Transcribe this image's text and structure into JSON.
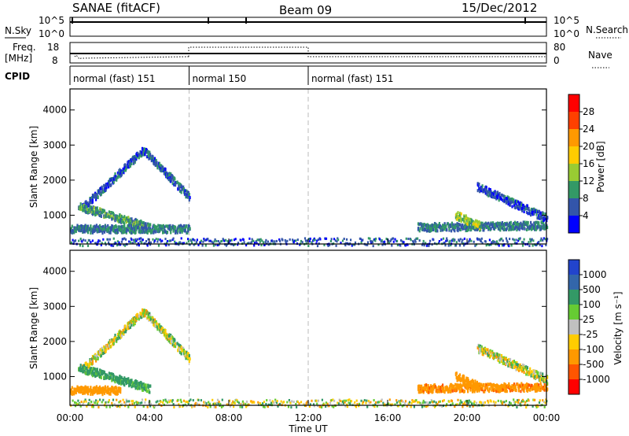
{
  "header": {
    "site": "SANAE (fitACF)",
    "beam": "Beam 09",
    "date": "15/Dec/2012"
  },
  "labels": {
    "nsky": "N.Sky",
    "nsearch": "N.Search",
    "freq_line1": "Freq.",
    "freq_line2": "[MHz]",
    "nave": "Nave",
    "cpid": "CPID",
    "x_axis": "Time UT",
    "y_axis": "Slant Range [km]",
    "power_bar": "Power [dB]",
    "velocity_bar": "Velocity [m s⁻¹]"
  },
  "ticks": {
    "nsky_left": [
      "10^5",
      "10^0"
    ],
    "nsky_right": [
      "10^5",
      "10^0"
    ],
    "freq_left": [
      "18",
      "8"
    ],
    "nave_right": [
      "80",
      "0"
    ],
    "time": [
      "00:00",
      "04:00",
      "08:00",
      "12:00",
      "16:00",
      "20:00",
      "00:00"
    ],
    "range": [
      "1000",
      "2000",
      "3000",
      "4000"
    ]
  },
  "cpid_segments": [
    {
      "label": "normal (fast) 151",
      "start_h": 0,
      "end_h": 6
    },
    {
      "label": "normal 150",
      "start_h": 6,
      "end_h": 12
    },
    {
      "label": "normal (fast) 151",
      "start_h": 12,
      "end_h": 24
    }
  ],
  "colorbars": {
    "power": {
      "labels": [
        "28",
        "24",
        "20",
        "16",
        "12",
        "8",
        "4"
      ],
      "colors": [
        "#ff0000",
        "#ff4000",
        "#ff9900",
        "#ffcc00",
        "#99cc33",
        "#339966",
        "#3355aa",
        "#0000ff"
      ]
    },
    "velocity": {
      "labels": [
        "1000",
        "500",
        "100",
        "25",
        "-25",
        "-100",
        "-500",
        "-1000"
      ],
      "colors": [
        "#2244cc",
        "#3366aa",
        "#339966",
        "#66cc33",
        "#c0c0c0",
        "#ffcc00",
        "#ff9900",
        "#ff5500",
        "#ff0000"
      ]
    }
  },
  "chart_data": [
    {
      "type": "heatmap",
      "title": "Power",
      "xlabel": "",
      "ylabel": "Slant Range [km]",
      "xlim_hours": [
        0,
        24
      ],
      "ylim_km": [
        180,
        4600
      ],
      "zlabel": "Power [dB]",
      "zlim": [
        0,
        32
      ],
      "features": [
        {
          "desc": "arch",
          "t_start": 0.6,
          "t_peak": 3.7,
          "t_end": 6.0,
          "range_start": 1200,
          "range_peak": 2850,
          "range_end": 1500,
          "value": 6
        },
        {
          "desc": "descending band",
          "t_start": 0.4,
          "t_end": 4.0,
          "range_start": 1250,
          "range_end": 650,
          "value": 10
        },
        {
          "desc": "low band",
          "t_start": 0.0,
          "t_end": 6.0,
          "range_start": 600,
          "range_end": 600,
          "value": 8
        },
        {
          "desc": "late band",
          "t_start": 17.5,
          "t_end": 24.0,
          "range_start": 650,
          "range_end": 700,
          "value": 8
        },
        {
          "desc": "evening arch",
          "t_start": 20.5,
          "t_end": 24.0,
          "range_start": 1800,
          "range_end": 900,
          "value": 5
        },
        {
          "desc": "afternoon cluster",
          "t_start": 19.4,
          "t_end": 20.6,
          "range_start": 1000,
          "range_end": 700,
          "value": 14
        },
        {
          "desc": "ground scatter",
          "t_start": 0.0,
          "t_end": 24.0,
          "range_start": 220,
          "range_end": 220,
          "value": 6
        }
      ]
    },
    {
      "type": "heatmap",
      "title": "Velocity",
      "xlabel": "Time UT",
      "ylabel": "Slant Range [km]",
      "xlim_hours": [
        0,
        24
      ],
      "ylim_km": [
        180,
        4600
      ],
      "zlabel": "Velocity [m s⁻¹]",
      "zlim": [
        -1000,
        1000
      ],
      "features": [
        {
          "desc": "arch",
          "t_start": 0.6,
          "t_peak": 3.7,
          "t_end": 6.0,
          "range_start": 1200,
          "range_peak": 2850,
          "range_end": 1500,
          "value": 0
        },
        {
          "desc": "descending band",
          "t_start": 0.4,
          "t_end": 4.0,
          "range_start": 1250,
          "range_end": 650,
          "value": 200
        },
        {
          "desc": "low band",
          "t_start": 0.0,
          "t_end": 2.5,
          "range_start": 600,
          "range_end": 600,
          "value": -300
        },
        {
          "desc": "late band",
          "t_start": 17.5,
          "t_end": 24.0,
          "range_start": 650,
          "range_end": 700,
          "value": -400
        },
        {
          "desc": "evening arch",
          "t_start": 20.5,
          "t_end": 24.0,
          "range_start": 1800,
          "range_end": 900,
          "value": 0
        },
        {
          "desc": "afternoon cluster",
          "t_start": 19.4,
          "t_end": 20.6,
          "range_start": 1000,
          "range_end": 700,
          "value": -300
        },
        {
          "desc": "ground scatter",
          "t_start": 0.0,
          "t_end": 24.0,
          "range_start": 220,
          "range_end": 220,
          "value": 0
        }
      ]
    }
  ]
}
